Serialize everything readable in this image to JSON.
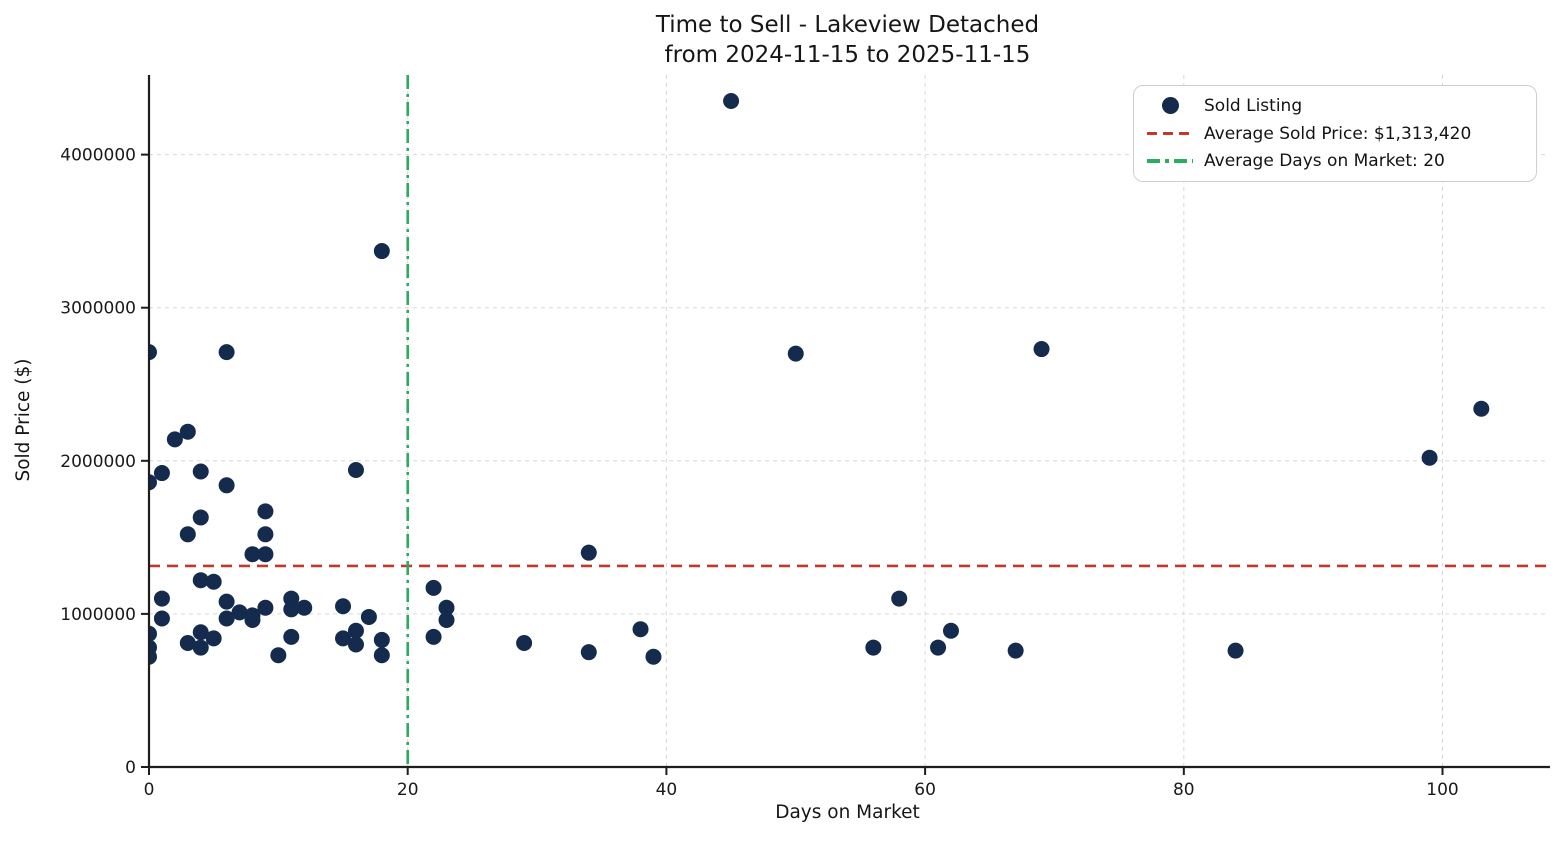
{
  "title_lines": [
    "Time to Sell - Lakeview Detached",
    "from 2024-11-15 to 2025-11-15"
  ],
  "chart_data": {
    "type": "scatter",
    "title": "Time to Sell - Lakeview Detached\nfrom 2024-11-15 to 2025-11-15",
    "xlabel": "Days on Market",
    "ylabel": "Sold Price ($)",
    "xlim": [
      0,
      108
    ],
    "ylim": [
      0,
      4520000
    ],
    "x_ticks": [
      0,
      20,
      40,
      60,
      80,
      100
    ],
    "y_ticks": [
      0,
      1000000,
      2000000,
      3000000,
      4000000
    ],
    "grid": true,
    "legend_position": "upper right",
    "avg_sold_price": 1313420,
    "avg_days_on_market": 20,
    "series": [
      {
        "name": "Sold Listing",
        "kind": "scatter",
        "color": "#142b4d",
        "points": [
          [
            0,
            2710000
          ],
          [
            0,
            1860000
          ],
          [
            0,
            870000
          ],
          [
            0,
            780000
          ],
          [
            0,
            720000
          ],
          [
            1,
            1920000
          ],
          [
            1,
            1100000
          ],
          [
            1,
            970000
          ],
          [
            2,
            2140000
          ],
          [
            3,
            2190000
          ],
          [
            3,
            1520000
          ],
          [
            3,
            810000
          ],
          [
            4,
            1930000
          ],
          [
            4,
            1630000
          ],
          [
            4,
            1220000
          ],
          [
            4,
            880000
          ],
          [
            4,
            780000
          ],
          [
            5,
            1210000
          ],
          [
            5,
            840000
          ],
          [
            6,
            2710000
          ],
          [
            6,
            1840000
          ],
          [
            6,
            1080000
          ],
          [
            6,
            970000
          ],
          [
            7,
            1010000
          ],
          [
            8,
            1390000
          ],
          [
            8,
            990000
          ],
          [
            8,
            960000
          ],
          [
            9,
            1670000
          ],
          [
            9,
            1520000
          ],
          [
            9,
            1390000
          ],
          [
            9,
            1040000
          ],
          [
            10,
            730000
          ],
          [
            11,
            1100000
          ],
          [
            11,
            1030000
          ],
          [
            11,
            850000
          ],
          [
            12,
            1040000
          ],
          [
            15,
            1050000
          ],
          [
            15,
            840000
          ],
          [
            16,
            1940000
          ],
          [
            16,
            890000
          ],
          [
            16,
            800000
          ],
          [
            17,
            980000
          ],
          [
            18,
            3370000
          ],
          [
            18,
            830000
          ],
          [
            18,
            730000
          ],
          [
            22,
            1170000
          ],
          [
            22,
            850000
          ],
          [
            23,
            1040000
          ],
          [
            23,
            960000
          ],
          [
            29,
            810000
          ],
          [
            34,
            1400000
          ],
          [
            34,
            750000
          ],
          [
            38,
            900000
          ],
          [
            39,
            720000
          ],
          [
            45,
            4350000
          ],
          [
            50,
            2700000
          ],
          [
            56,
            780000
          ],
          [
            58,
            1100000
          ],
          [
            61,
            780000
          ],
          [
            62,
            890000
          ],
          [
            67,
            760000
          ],
          [
            69,
            2730000
          ],
          [
            84,
            760000
          ],
          [
            99,
            2020000
          ],
          [
            103,
            2340000
          ]
        ]
      },
      {
        "name": "Average Sold Price: $1,313,420",
        "kind": "hline",
        "y": 1313420,
        "color": "#c0392b",
        "dash": "dashed"
      },
      {
        "name": "Average Days on Market: 20",
        "kind": "vline",
        "x": 20,
        "color": "#2bad61",
        "dash": "dashdot"
      }
    ]
  },
  "colors": {
    "scatter_point": "#142b4d",
    "avg_price_line": "#c0392b",
    "avg_days_line": "#2bad61",
    "grid": "#d9d9d9",
    "axis": "#1d1d1d",
    "text": "#1a1a1a",
    "background": "#ffffff",
    "legend_border": "#cfcfcf"
  }
}
